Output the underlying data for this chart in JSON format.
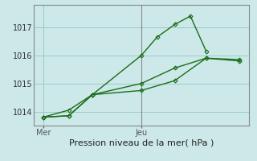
{
  "background_color": "#cce8e8",
  "plot_bg_color": "#cce8e8",
  "grid_color": "#99cccc",
  "line_color": "#1a6e1a",
  "xlabel": "Pression niveau de la mer( hPa )",
  "xtick_labels": [
    "Mer",
    "Jeu"
  ],
  "xtick_positions": [
    0.0,
    0.5
  ],
  "ylim": [
    1013.5,
    1017.8
  ],
  "xlim": [
    -0.05,
    1.05
  ],
  "yticks": [
    1014,
    1015,
    1016,
    1017
  ],
  "vline_x": 0.5,
  "series1_x": [
    0.0,
    0.13,
    0.25,
    0.5,
    0.58,
    0.67,
    0.75,
    0.83
  ],
  "series1_y": [
    1013.8,
    1013.85,
    1014.6,
    1016.0,
    1016.65,
    1017.1,
    1017.4,
    1016.15
  ],
  "series2_x": [
    0.0,
    0.13,
    0.25,
    0.5,
    0.67,
    0.83,
    1.0
  ],
  "series2_y": [
    1013.8,
    1014.05,
    1014.6,
    1015.0,
    1015.55,
    1015.9,
    1015.8
  ],
  "series3_x": [
    0.0,
    0.13,
    0.25,
    0.5,
    0.67,
    0.83,
    1.0
  ],
  "series3_y": [
    1013.8,
    1013.85,
    1014.6,
    1014.75,
    1015.1,
    1015.9,
    1015.85
  ],
  "xlabel_fontsize": 8,
  "ytick_fontsize": 7,
  "xtick_fontsize": 7,
  "linewidth": 1.0,
  "markersize": 2.5
}
